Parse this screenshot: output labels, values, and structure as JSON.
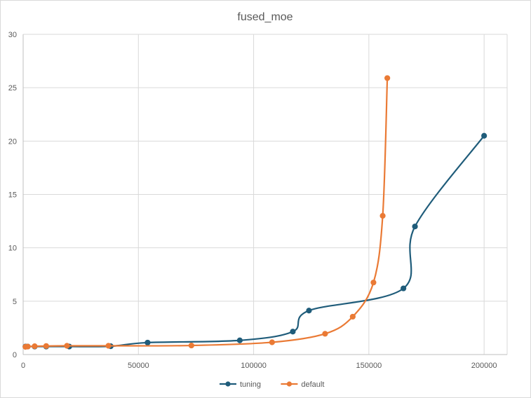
{
  "chart_data": {
    "type": "line",
    "title": "fused_moe",
    "xlabel": "",
    "ylabel": "",
    "xlim": [
      0,
      210000
    ],
    "ylim": [
      0,
      30
    ],
    "x_ticks": [
      "0",
      "50000",
      "100000",
      "150000",
      "200000"
    ],
    "y_ticks": [
      "0",
      "5",
      "10",
      "15",
      "20",
      "25",
      "30"
    ],
    "grid": true,
    "legend_position": "bottom",
    "smooth": true,
    "series": [
      {
        "name": "tuning",
        "color": "#1f5c7a",
        "points": [
          [
            1000,
            0.75
          ],
          [
            2000,
            0.75
          ],
          [
            5000,
            0.75
          ],
          [
            10000,
            0.75
          ],
          [
            20000,
            0.75
          ],
          [
            38000,
            0.78
          ],
          [
            54000,
            1.12
          ],
          [
            94000,
            1.33
          ],
          [
            117000,
            2.15
          ],
          [
            124000,
            4.12
          ],
          [
            165000,
            6.2
          ],
          [
            170000,
            12.0
          ],
          [
            200000,
            20.5
          ]
        ]
      },
      {
        "name": "default",
        "color": "#ea7a35",
        "points": [
          [
            1000,
            0.72
          ],
          [
            2000,
            0.75
          ],
          [
            5000,
            0.78
          ],
          [
            10000,
            0.8
          ],
          [
            19000,
            0.82
          ],
          [
            37000,
            0.82
          ],
          [
            73000,
            0.85
          ],
          [
            108000,
            1.15
          ],
          [
            131000,
            1.95
          ],
          [
            143000,
            3.55
          ],
          [
            152000,
            6.75
          ],
          [
            156000,
            13.0
          ],
          [
            158000,
            25.9
          ]
        ]
      }
    ]
  }
}
